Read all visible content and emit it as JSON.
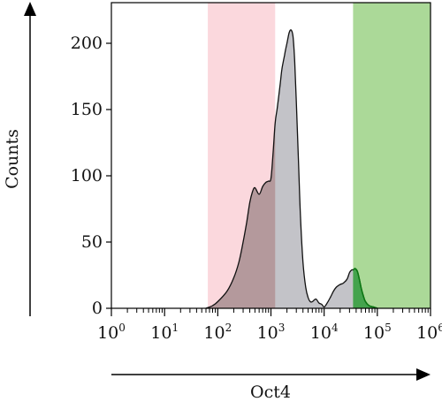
{
  "chart_data": {
    "type": "area",
    "xlabel": "Oct4",
    "ylabel": "Counts",
    "xscale": "log",
    "xlim": [
      1,
      1000000
    ],
    "ylim": [
      0,
      222
    ],
    "x_ticks": [
      {
        "base": "10",
        "exp": "0",
        "value": 1
      },
      {
        "base": "10",
        "exp": "1",
        "value": 10
      },
      {
        "base": "10",
        "exp": "2",
        "value": 100
      },
      {
        "base": "10",
        "exp": "3",
        "value": 1000
      },
      {
        "base": "10",
        "exp": "4",
        "value": 10000
      },
      {
        "base": "10",
        "exp": "5",
        "value": 100000
      },
      {
        "base": "10",
        "exp": "6",
        "value": 1000000
      }
    ],
    "y_ticks": [
      "0",
      "50",
      "100",
      "150",
      "200"
    ],
    "y_tick_values": [
      0,
      50,
      100,
      150,
      200
    ],
    "gates": [
      {
        "range": [
          65,
          1200
        ],
        "color": "#f7a9b4"
      },
      {
        "range": [
          35000,
          1000000
        ],
        "color": "#8fcc75"
      }
    ],
    "series": [
      {
        "fill": "#bcbcc2",
        "x": [
          60,
          80,
          100,
          150,
          200,
          250,
          300,
          350,
          400,
          450,
          500,
          600,
          700,
          800,
          900,
          1000,
          1100,
          1200,
          1300,
          1400,
          1500,
          1600,
          1700,
          1800,
          1900,
          2000,
          2200,
          2400,
          2600,
          2800,
          3000,
          3300,
          3600,
          4000,
          4500,
          5000,
          5500,
          6000,
          7000,
          8000,
          9000,
          10000,
          11000,
          13000,
          15000,
          17000,
          20000,
          23000,
          27000,
          30000,
          33000,
          35000,
          38000,
          42000,
          46000,
          50000,
          55000,
          60000,
          70000,
          85000,
          100000
        ],
        "y": [
          0,
          2,
          5,
          13,
          23,
          35,
          50,
          65,
          80,
          88,
          91,
          86,
          92,
          95,
          96,
          98,
          118,
          140,
          150,
          160,
          170,
          180,
          186,
          191,
          196,
          200,
          208,
          210,
          205,
          186,
          156,
          110,
          68,
          35,
          16,
          8,
          5,
          5,
          7,
          4,
          3,
          1,
          3,
          8,
          13,
          16,
          18,
          19,
          22,
          27,
          29,
          29,
          30,
          28,
          22,
          15,
          9,
          5,
          2,
          1,
          0
        ]
      }
    ]
  }
}
